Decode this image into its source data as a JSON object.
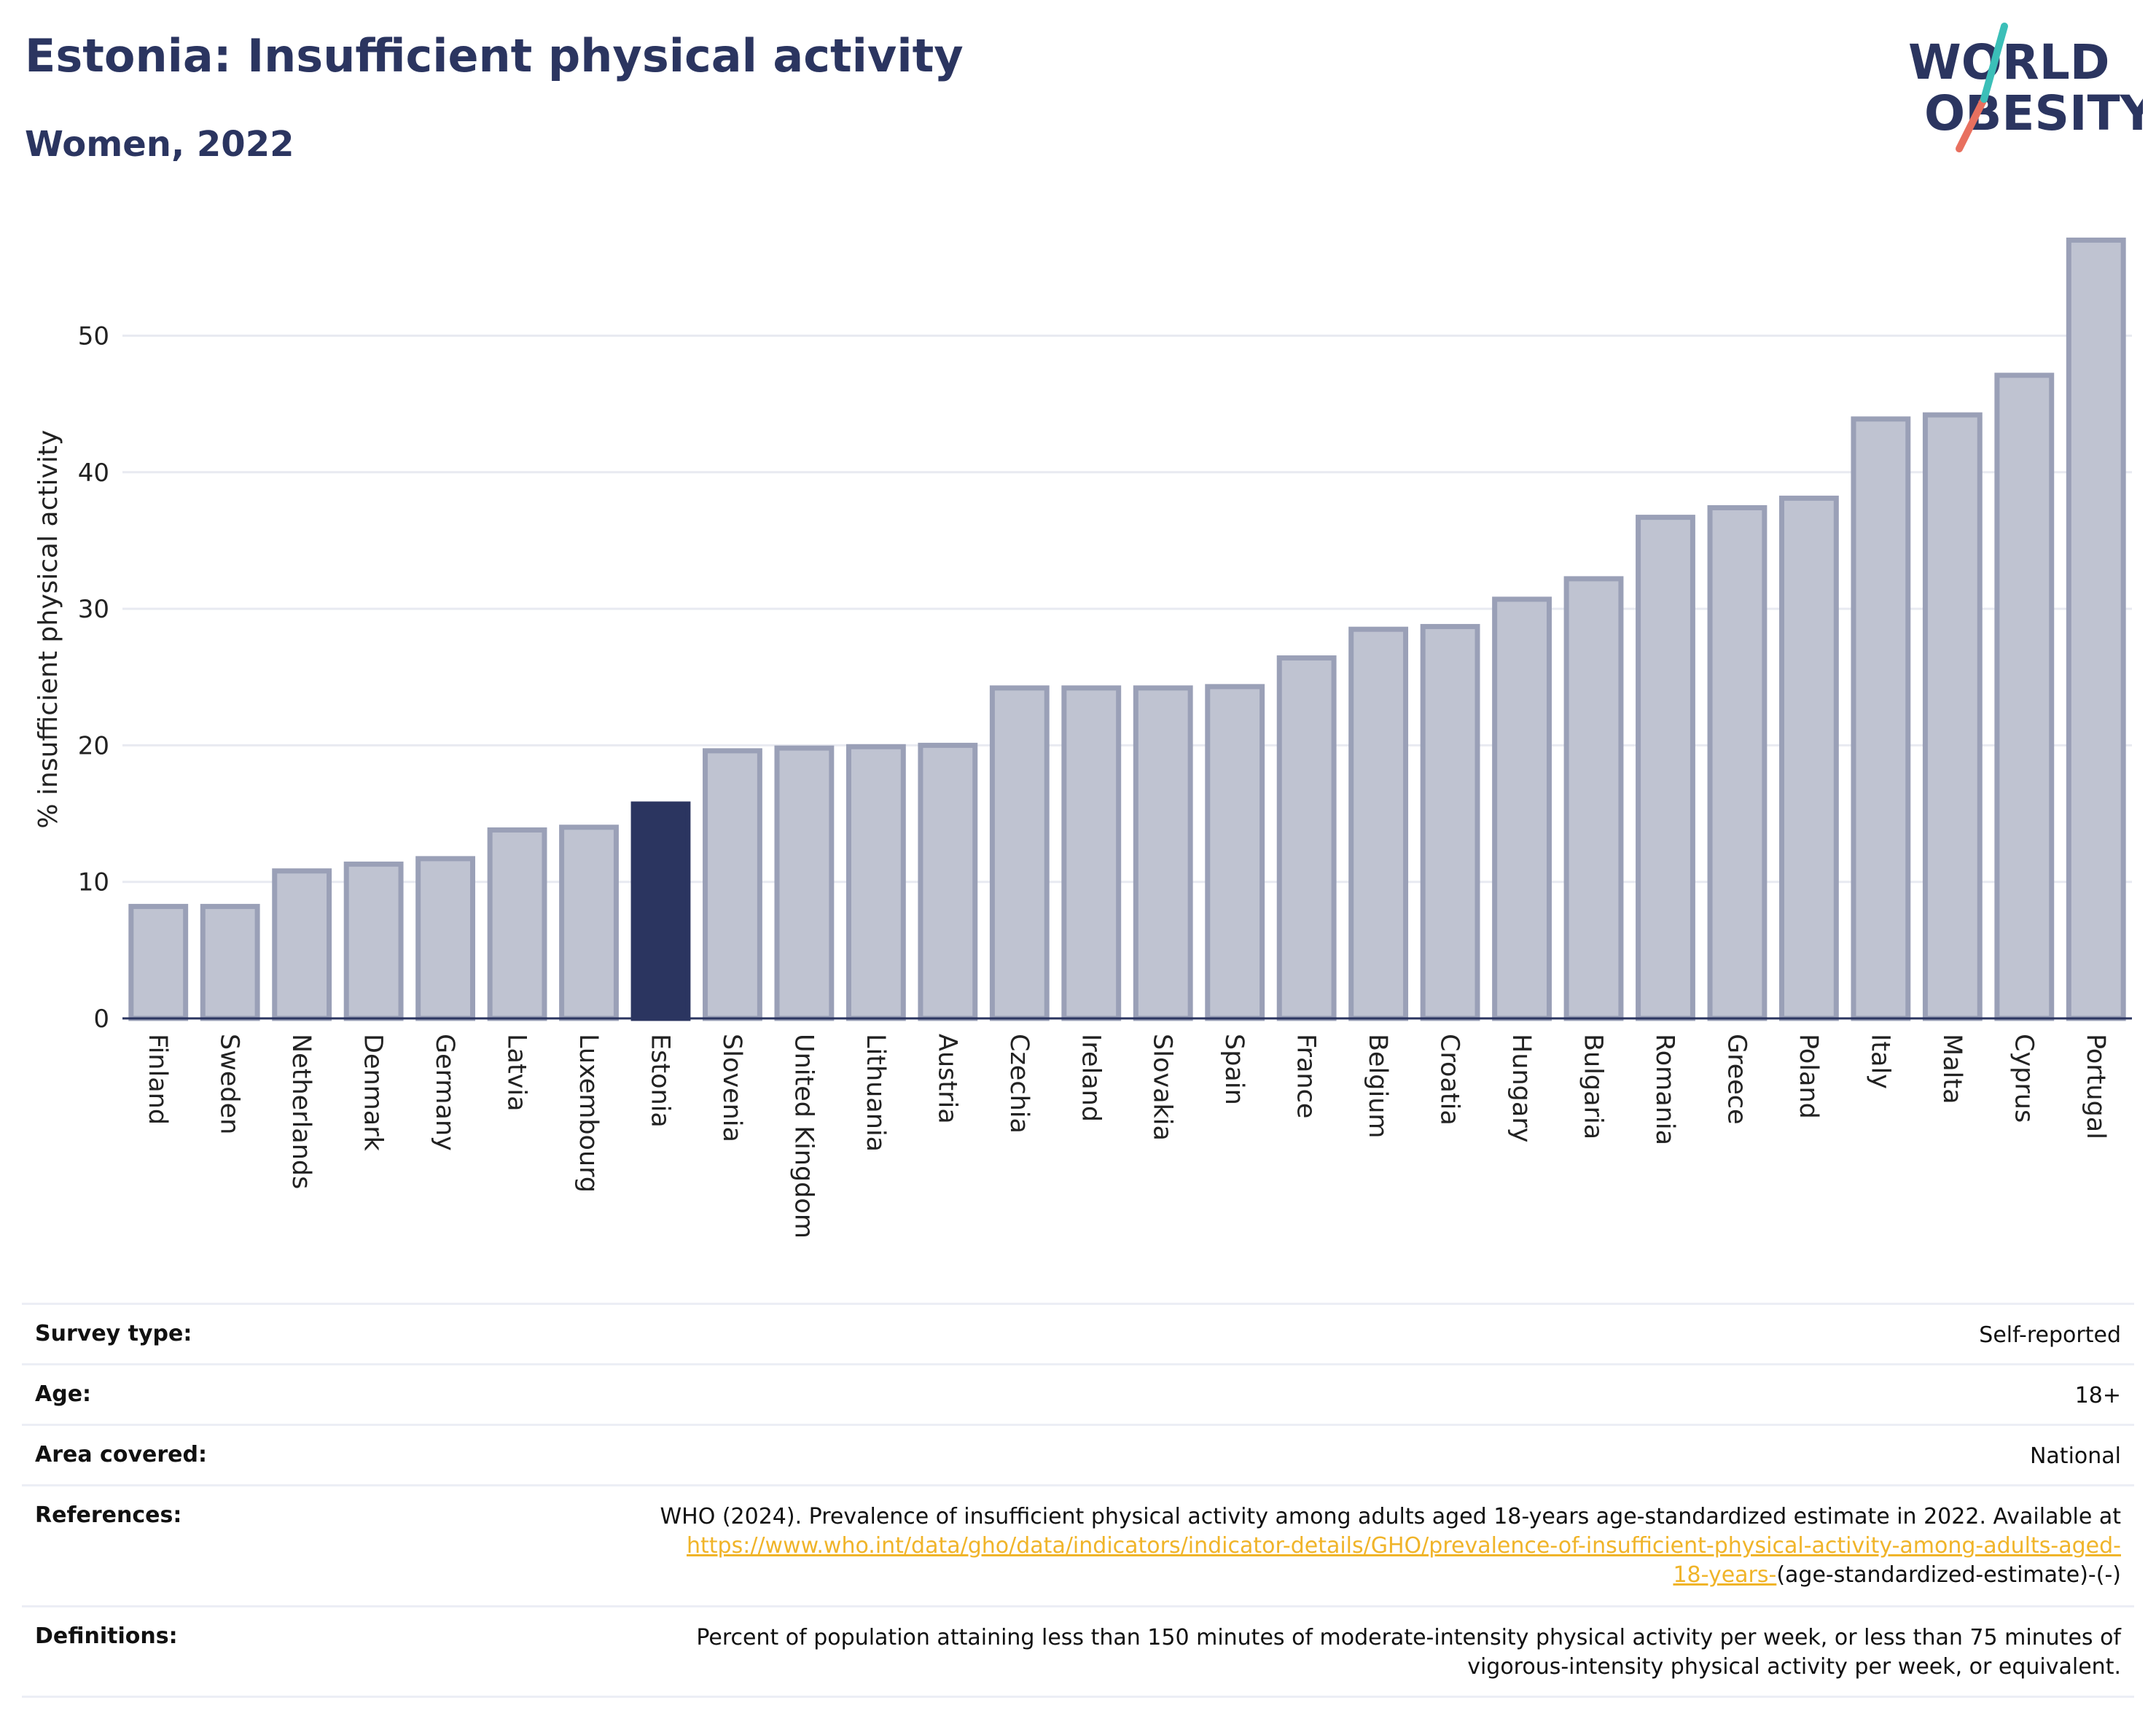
{
  "header": {
    "title": "Estonia: Insufficient physical activity",
    "subtitle": "Women, 2022"
  },
  "logo": {
    "line1": "WORLD",
    "line2": "OBESITY"
  },
  "colors": {
    "highlight": "#2b3560",
    "bar": "#bfc3d1",
    "bar_stroke": "#9aa0b7",
    "title": "#2b3560",
    "link": "#f0b429"
  },
  "chart_data": {
    "type": "bar",
    "title": "Estonia: Insufficient physical activity",
    "subtitle": "Women, 2022",
    "ylabel": "% insufficient physical activity",
    "xlabel": "",
    "ylim": [
      0,
      58
    ],
    "yticks": [
      0,
      10,
      20,
      30,
      40,
      50
    ],
    "grid": true,
    "highlight": "Estonia",
    "categories": [
      "Finland",
      "Sweden",
      "Netherlands",
      "Denmark",
      "Germany",
      "Latvia",
      "Luxembourg",
      "Estonia",
      "Slovenia",
      "United Kingdom",
      "Lithuania",
      "Austria",
      "Czechia",
      "Ireland",
      "Slovakia",
      "Spain",
      "France",
      "Belgium",
      "Croatia",
      "Hungary",
      "Bulgaria",
      "Romania",
      "Greece",
      "Poland",
      "Italy",
      "Malta",
      "Cyprus",
      "Portugal"
    ],
    "values": [
      8.2,
      8.2,
      10.8,
      11.3,
      11.7,
      13.8,
      14.0,
      15.7,
      19.6,
      19.8,
      19.9,
      20.0,
      24.2,
      24.2,
      24.2,
      24.3,
      26.4,
      28.5,
      28.7,
      30.7,
      32.2,
      36.7,
      37.4,
      38.1,
      43.9,
      44.2,
      47.1,
      57.0
    ]
  },
  "info": {
    "survey_type": {
      "label": "Survey type:",
      "value": "Self-reported"
    },
    "age": {
      "label": "Age:",
      "value": "18+"
    },
    "area": {
      "label": "Area covered:",
      "value": "National"
    },
    "references": {
      "label": "References:",
      "text": "WHO (2024). Prevalence of insufficient physical activity among adults aged 18-years age-standardized estimate in 2022. Available at",
      "link_part1": "https://www.who.int/data/gho/data/indicators/indicator-details/GHO/prevalence-of-insufficient-physical-activity-among-adults-aged-",
      "link_part2": "18-years-",
      "suffix": "(age-standardized-estimate)-(-)"
    },
    "definitions": {
      "label": "Definitions:",
      "line1": "Percent of population attaining less than 150 minutes of moderate-intensity physical activity per week, or less than 75 minutes of",
      "line2": "vigorous-intensity physical activity per week, or equivalent."
    }
  }
}
